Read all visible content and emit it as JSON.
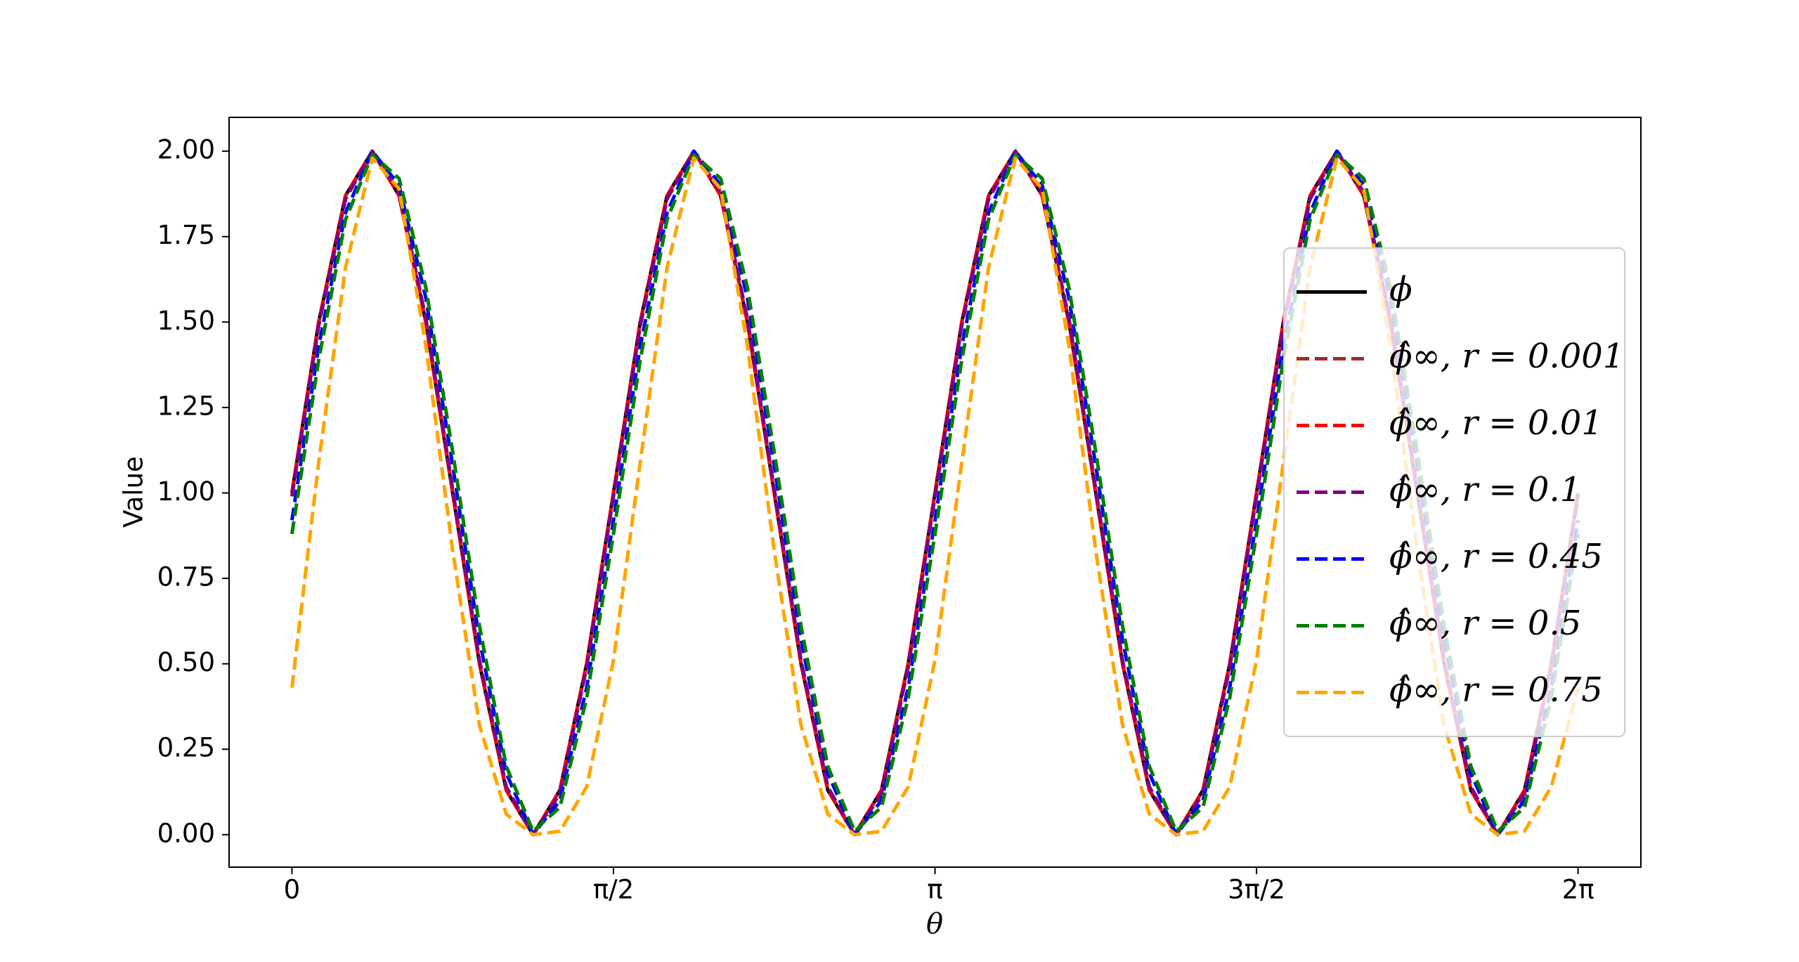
{
  "chart_data": {
    "type": "line",
    "x_label": "θ",
    "y_label": "Value",
    "x": [
      0,
      0.1309,
      0.2618,
      0.3927,
      0.5236,
      0.6545,
      0.7854,
      0.9163,
      1.0472,
      1.1781,
      1.309,
      1.4399,
      1.5708,
      1.7017,
      1.8326,
      1.9635,
      2.0944,
      2.2253,
      2.3562,
      2.4871,
      2.618,
      2.7489,
      2.8798,
      3.0107,
      3.1416,
      3.2725,
      3.4034,
      3.5343,
      3.6652,
      3.7961,
      3.927,
      4.0579,
      4.1888,
      4.3197,
      4.4506,
      4.5815,
      4.7124,
      4.8433,
      4.9742,
      5.1051,
      5.236,
      5.3669,
      5.4978,
      5.6287,
      5.7596,
      5.8905,
      6.0214,
      6.1523,
      6.2832
    ],
    "series": [
      {
        "name": "ϕ",
        "color": "#000000",
        "linestyle": "solid",
        "values": [
          1,
          1.5,
          1.87,
          2,
          1.87,
          1.5,
          1,
          0.5,
          0.13,
          0,
          0.13,
          0.5,
          1,
          1.5,
          1.87,
          2,
          1.87,
          1.5,
          1,
          0.5,
          0.13,
          0,
          0.13,
          0.5,
          1,
          1.5,
          1.87,
          2,
          1.87,
          1.5,
          1,
          0.5,
          0.13,
          0,
          0.13,
          0.5,
          1,
          1.5,
          1.87,
          2,
          1.87,
          1.5,
          1,
          0.5,
          0.13,
          0,
          0.13,
          0.5,
          1
        ]
      },
      {
        "name": "ϕ̂∞, r = 0.001",
        "color": "#a52a2a",
        "linestyle": "dashed",
        "values": [
          1,
          1.5,
          1.87,
          2,
          1.87,
          1.5,
          1,
          0.5,
          0.13,
          0,
          0.13,
          0.5,
          1,
          1.5,
          1.87,
          2,
          1.87,
          1.5,
          1,
          0.5,
          0.13,
          0,
          0.13,
          0.5,
          1,
          1.5,
          1.87,
          2,
          1.87,
          1.5,
          1,
          0.5,
          0.13,
          0,
          0.13,
          0.5,
          1,
          1.5,
          1.87,
          2,
          1.87,
          1.5,
          1,
          0.5,
          0.13,
          0,
          0.13,
          0.5,
          1
        ]
      },
      {
        "name": "ϕ̂∞, r = 0.01",
        "color": "#ff0000",
        "linestyle": "dashed",
        "values": [
          1,
          1.5,
          1.87,
          2,
          1.87,
          1.5,
          1,
          0.5,
          0.13,
          0,
          0.13,
          0.5,
          1,
          1.5,
          1.87,
          2,
          1.87,
          1.5,
          1,
          0.5,
          0.13,
          0,
          0.13,
          0.5,
          1,
          1.5,
          1.87,
          2,
          1.87,
          1.5,
          1,
          0.5,
          0.13,
          0,
          0.13,
          0.5,
          1,
          1.5,
          1.87,
          2,
          1.87,
          1.5,
          1,
          0.5,
          0.13,
          0,
          0.13,
          0.5,
          1
        ]
      },
      {
        "name": "ϕ̂∞, r = 0.1",
        "color": "#800080",
        "linestyle": "dashed",
        "values": [
          0.99,
          1.49,
          1.86,
          2,
          1.88,
          1.51,
          1.01,
          0.51,
          0.14,
          0,
          0.12,
          0.49,
          0.99,
          1.49,
          1.86,
          2,
          1.88,
          1.51,
          1.01,
          0.51,
          0.14,
          0,
          0.12,
          0.49,
          0.99,
          1.49,
          1.86,
          2,
          1.88,
          1.51,
          1.01,
          0.51,
          0.14,
          0,
          0.12,
          0.49,
          0.99,
          1.49,
          1.86,
          2,
          1.88,
          1.51,
          1.01,
          0.51,
          0.14,
          0,
          0.12,
          0.49,
          0.99
        ]
      },
      {
        "name": "ϕ̂∞, r = 0.45",
        "color": "#0000ff",
        "linestyle": "dashed",
        "values": [
          0.92,
          1.43,
          1.82,
          2,
          1.9,
          1.57,
          1.08,
          0.57,
          0.18,
          0,
          0.1,
          0.43,
          0.92,
          1.43,
          1.82,
          2,
          1.9,
          1.57,
          1.08,
          0.57,
          0.18,
          0,
          0.1,
          0.43,
          0.92,
          1.43,
          1.82,
          2,
          1.9,
          1.57,
          1.08,
          0.57,
          0.18,
          0,
          0.1,
          0.43,
          0.92,
          1.43,
          1.82,
          2,
          1.9,
          1.57,
          1.08,
          0.57,
          0.18,
          0,
          0.1,
          0.43,
          0.92
        ]
      },
      {
        "name": "ϕ̂∞, r = 0.5",
        "color": "#008000",
        "linestyle": "dashed",
        "values": [
          0.88,
          1.39,
          1.8,
          1.99,
          1.92,
          1.6,
          1.12,
          0.61,
          0.2,
          0.01,
          0.08,
          0.4,
          0.88,
          1.39,
          1.8,
          1.99,
          1.92,
          1.6,
          1.12,
          0.61,
          0.2,
          0.01,
          0.08,
          0.4,
          0.88,
          1.39,
          1.8,
          1.99,
          1.92,
          1.6,
          1.12,
          0.61,
          0.2,
          0.01,
          0.08,
          0.4,
          0.88,
          1.39,
          1.8,
          1.99,
          1.92,
          1.6,
          1.12,
          0.61,
          0.2,
          0.01,
          0.08,
          0.4,
          0.88
        ]
      },
      {
        "name": "ϕ̂∞, r = 0.75",
        "color": "#ffa500",
        "linestyle": "dashed",
        "values": [
          0.43,
          1.09,
          1.66,
          1.98,
          1.89,
          1.43,
          0.83,
          0.32,
          0.06,
          0,
          0.01,
          0.14,
          0.51,
          1.09,
          1.66,
          1.98,
          1.89,
          1.43,
          0.83,
          0.32,
          0.06,
          0,
          0.01,
          0.14,
          0.51,
          1.09,
          1.66,
          1.98,
          1.89,
          1.43,
          0.83,
          0.32,
          0.06,
          0,
          0.01,
          0.14,
          0.51,
          1.09,
          1.66,
          1.98,
          1.89,
          1.43,
          0.83,
          0.32,
          0.06,
          0,
          0.01,
          0.14,
          0.43
        ]
      }
    ],
    "xlim": [
      -0.307,
      6.59
    ],
    "xticks": [
      0,
      {
        "value": 1.5708,
        "label": "π/2"
      },
      {
        "value": 3.1416,
        "label": "π"
      },
      {
        "value": 4.7124,
        "label": "3π/2"
      },
      {
        "value": 6.2832,
        "label": "2π"
      }
    ],
    "ylim": [
      -0.095,
      2.099
    ],
    "yticks": [
      {
        "value": 0,
        "label": "0.00"
      },
      {
        "value": 0.25,
        "label": "0.25"
      },
      {
        "value": 0.5,
        "label": "0.50"
      },
      {
        "value": 0.75,
        "label": "0.75"
      },
      {
        "value": 1,
        "label": "1.00"
      },
      {
        "value": 1.25,
        "label": "1.25"
      },
      {
        "value": 1.5,
        "label": "1.50"
      },
      {
        "value": 1.75,
        "label": "1.75"
      },
      {
        "value": 2,
        "label": "2.00"
      }
    ],
    "grid": false,
    "legend_loc": "center right"
  }
}
